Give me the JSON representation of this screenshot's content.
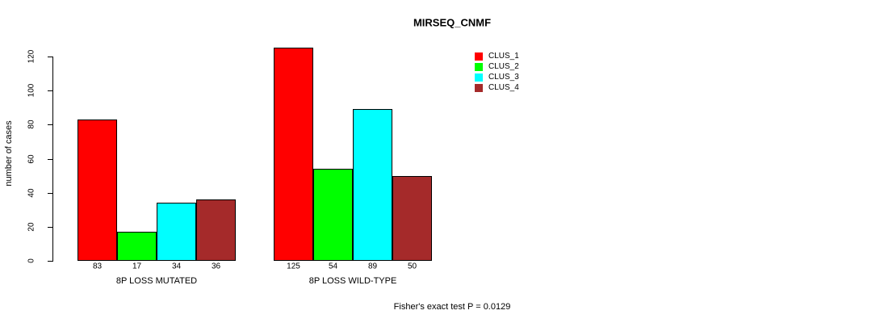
{
  "page": {
    "title": "MIRSEQ_CNMF",
    "annotation": "Fisher's exact test P = 0.0129"
  },
  "chart_data": {
    "type": "bar",
    "title": "MIRSEQ_CNMF",
    "xlabel": "",
    "ylabel": "number of cases",
    "ylim": [
      0,
      120
    ],
    "yticks": [
      0,
      20,
      40,
      60,
      80,
      100,
      120
    ],
    "grid": false,
    "legend_position": "top-right-inside",
    "categories": [
      "8P LOSS MUTATED",
      "8P LOSS WILD-TYPE"
    ],
    "series": [
      {
        "name": "CLUS_1",
        "color": "#ff0000",
        "values": [
          83,
          125
        ]
      },
      {
        "name": "CLUS_2",
        "color": "#00ff00",
        "values": [
          17,
          54
        ]
      },
      {
        "name": "CLUS_3",
        "color": "#00ffff",
        "values": [
          34,
          89
        ]
      },
      {
        "name": "CLUS_4",
        "color": "#a52a2a",
        "values": [
          36,
          50
        ]
      }
    ],
    "bar_value_labels": [
      [
        "83",
        "17",
        "34",
        "36"
      ],
      [
        "125",
        "54",
        "89",
        "50"
      ]
    ],
    "annotation": "Fisher's exact test P = 0.0129"
  }
}
